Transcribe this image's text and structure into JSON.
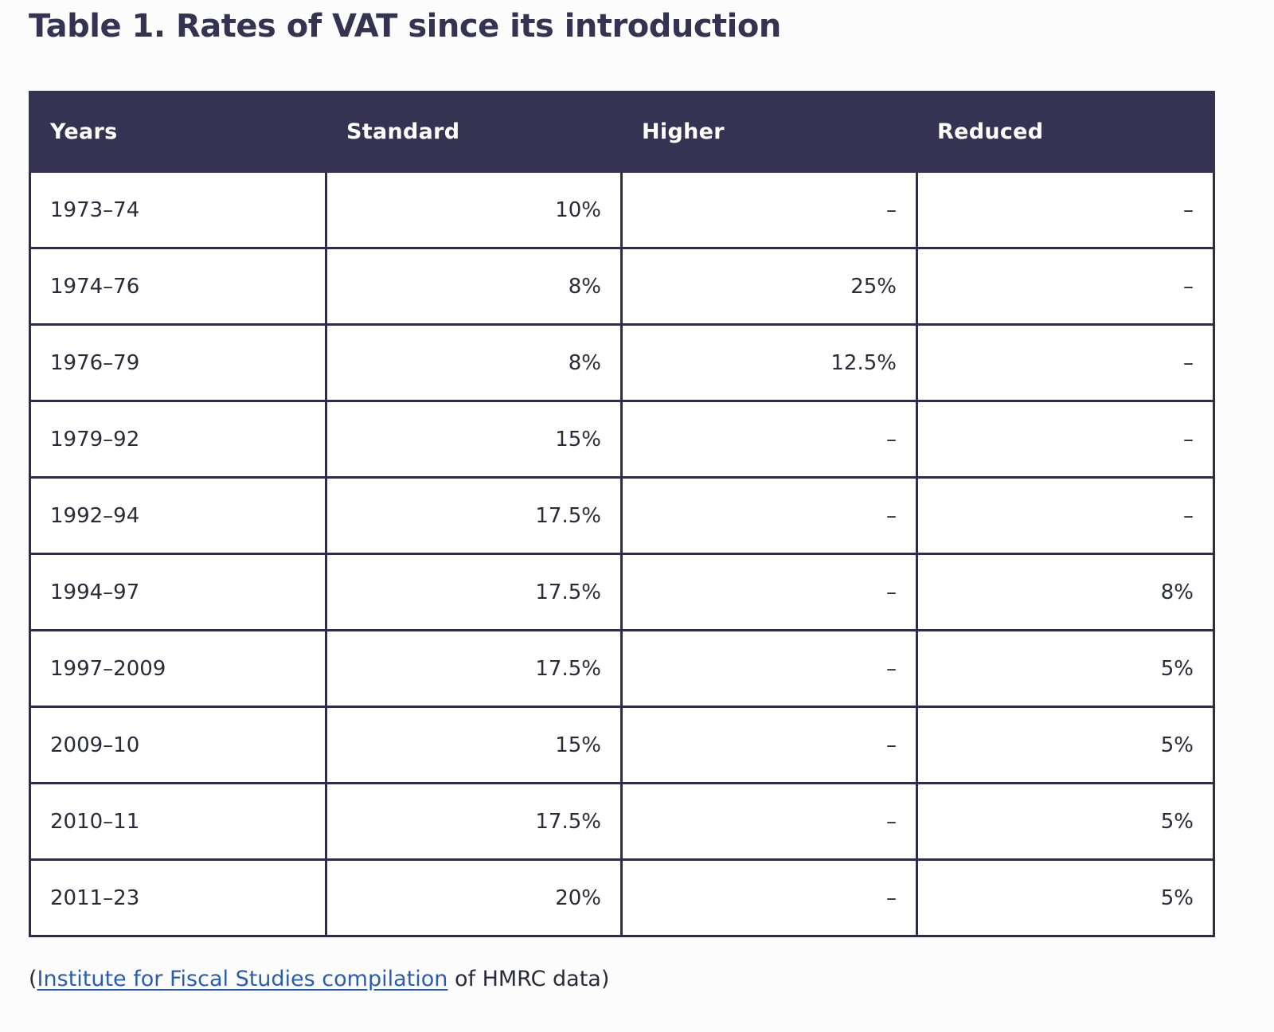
{
  "title": "Table 1. Rates of VAT since its introduction",
  "table": {
    "headers": [
      "Years",
      "Standard",
      "Higher",
      "Reduced"
    ],
    "rows": [
      [
        "1973–74",
        "10%",
        "–",
        "–"
      ],
      [
        "1974–76",
        "8%",
        "25%",
        "–"
      ],
      [
        "1976–79",
        "8%",
        "12.5%",
        "–"
      ],
      [
        "1979–92",
        "15%",
        "–",
        "–"
      ],
      [
        "1992–94",
        "17.5%",
        "–",
        "–"
      ],
      [
        "1994–97",
        "17.5%",
        "–",
        "8%"
      ],
      [
        "1997–2009",
        "17.5%",
        "–",
        "5%"
      ],
      [
        "2009–10",
        "15%",
        "–",
        "5%"
      ],
      [
        "2010–11",
        "17.5%",
        "–",
        "5%"
      ],
      [
        "2011–23",
        "20%",
        "–",
        "5%"
      ]
    ]
  },
  "source": {
    "open_paren": "(",
    "link_text": "Institute for Fiscal Studies compilation",
    "suffix": " of HMRC data)"
  },
  "colors": {
    "header_bg": "#353351",
    "header_text": "#ffffff",
    "title": "#353351",
    "link": "#2a5db0",
    "border": "#2f2d45"
  }
}
